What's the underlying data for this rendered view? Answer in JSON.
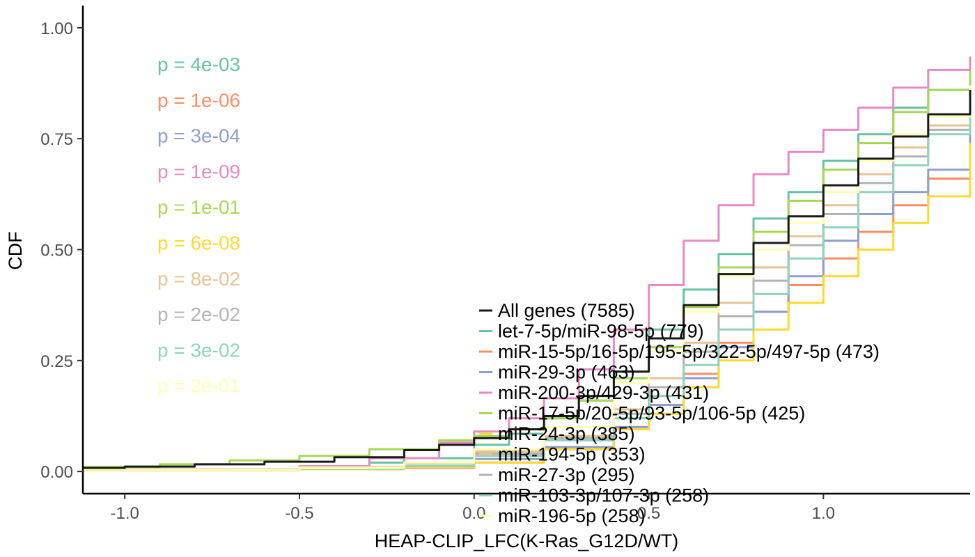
{
  "chart_data": {
    "type": "line",
    "xlabel": "HEAP-CLIP_LFC(K-Ras_G12D/WT)",
    "ylabel": "CDF",
    "xlim": [
      -1.12,
      1.42
    ],
    "ylim": [
      -0.05,
      1.05
    ],
    "x_ticks": [
      {
        "value": -1.0,
        "label": "-1.0"
      },
      {
        "value": -0.5,
        "label": "-0.5"
      },
      {
        "value": 0.0,
        "label": "0.0"
      },
      {
        "value": 0.5,
        "label": "0.5"
      },
      {
        "value": 1.0,
        "label": "1.0"
      }
    ],
    "y_ticks": [
      {
        "value": 0.0,
        "label": "0.00"
      },
      {
        "value": 0.25,
        "label": "0.25"
      },
      {
        "value": 0.5,
        "label": "0.50"
      },
      {
        "value": 0.75,
        "label": "0.75"
      },
      {
        "value": 1.0,
        "label": "1.00"
      }
    ],
    "grid": false,
    "legend_position": "bottom-right",
    "series": [
      {
        "name": "All genes (7585)",
        "color": "#1a1a1a",
        "pvalue": "",
        "points": [
          [
            -1.12,
            0.008
          ],
          [
            -1.0,
            0.011
          ],
          [
            -0.8,
            0.016
          ],
          [
            -0.6,
            0.022
          ],
          [
            -0.4,
            0.032
          ],
          [
            -0.2,
            0.048
          ],
          [
            -0.1,
            0.06
          ],
          [
            0.0,
            0.075
          ],
          [
            0.1,
            0.095
          ],
          [
            0.2,
            0.125
          ],
          [
            0.3,
            0.17
          ],
          [
            0.4,
            0.225
          ],
          [
            0.5,
            0.3
          ],
          [
            0.6,
            0.375
          ],
          [
            0.7,
            0.445
          ],
          [
            0.8,
            0.515
          ],
          [
            0.9,
            0.575
          ],
          [
            1.0,
            0.645
          ],
          [
            1.1,
            0.705
          ],
          [
            1.2,
            0.755
          ],
          [
            1.3,
            0.805
          ],
          [
            1.42,
            0.86
          ]
        ]
      },
      {
        "name": "let-7-5p/miR-98-5p (779)",
        "color": "#66c2a5",
        "pvalue": "p = 4e-03",
        "points": [
          [
            -1.12,
            0.005
          ],
          [
            -0.5,
            0.01
          ],
          [
            -0.3,
            0.02
          ],
          [
            -0.2,
            0.03
          ],
          [
            0.0,
            0.06
          ],
          [
            0.1,
            0.085
          ],
          [
            0.2,
            0.12
          ],
          [
            0.3,
            0.16
          ],
          [
            0.4,
            0.225
          ],
          [
            0.5,
            0.32
          ],
          [
            0.6,
            0.41
          ],
          [
            0.7,
            0.49
          ],
          [
            0.8,
            0.57
          ],
          [
            0.9,
            0.63
          ],
          [
            1.0,
            0.7
          ],
          [
            1.1,
            0.76
          ],
          [
            1.2,
            0.82
          ],
          [
            1.3,
            0.86
          ],
          [
            1.42,
            0.905
          ]
        ]
      },
      {
        "name": "miR-15-5p/16-5p/195-5p/322-5p/497-5p (473)",
        "color": "#fc8d62",
        "pvalue": "p = 1e-06",
        "points": [
          [
            -1.12,
            0.003
          ],
          [
            -0.5,
            0.005
          ],
          [
            -0.2,
            0.008
          ],
          [
            0.0,
            0.02
          ],
          [
            0.2,
            0.05
          ],
          [
            0.4,
            0.1
          ],
          [
            0.5,
            0.15
          ],
          [
            0.6,
            0.22
          ],
          [
            0.7,
            0.29
          ],
          [
            0.8,
            0.36
          ],
          [
            0.9,
            0.42
          ],
          [
            1.0,
            0.48
          ],
          [
            1.1,
            0.54
          ],
          [
            1.2,
            0.6
          ],
          [
            1.3,
            0.66
          ],
          [
            1.42,
            0.76
          ]
        ]
      },
      {
        "name": "miR-29-3p (463)",
        "color": "#8da0cb",
        "pvalue": "p = 3e-04",
        "points": [
          [
            -1.12,
            0.004
          ],
          [
            -0.5,
            0.007
          ],
          [
            -0.2,
            0.012
          ],
          [
            0.0,
            0.028
          ],
          [
            0.2,
            0.055
          ],
          [
            0.4,
            0.1
          ],
          [
            0.5,
            0.15
          ],
          [
            0.6,
            0.21
          ],
          [
            0.7,
            0.28
          ],
          [
            0.8,
            0.36
          ],
          [
            0.9,
            0.44
          ],
          [
            1.0,
            0.52
          ],
          [
            1.1,
            0.58
          ],
          [
            1.2,
            0.63
          ],
          [
            1.3,
            0.68
          ],
          [
            1.42,
            0.77
          ]
        ]
      },
      {
        "name": "miR-200-3p/429-3p (431)",
        "color": "#e78ac3",
        "pvalue": "p = 1e-09",
        "points": [
          [
            -1.12,
            0.005
          ],
          [
            -0.5,
            0.012
          ],
          [
            -0.3,
            0.03
          ],
          [
            -0.1,
            0.065
          ],
          [
            0.0,
            0.09
          ],
          [
            0.1,
            0.12
          ],
          [
            0.2,
            0.165
          ],
          [
            0.3,
            0.23
          ],
          [
            0.4,
            0.32
          ],
          [
            0.5,
            0.42
          ],
          [
            0.6,
            0.52
          ],
          [
            0.7,
            0.6
          ],
          [
            0.8,
            0.67
          ],
          [
            0.9,
            0.72
          ],
          [
            1.0,
            0.77
          ],
          [
            1.1,
            0.82
          ],
          [
            1.2,
            0.865
          ],
          [
            1.3,
            0.905
          ],
          [
            1.42,
            0.935
          ]
        ]
      },
      {
        "name": "miR-17-5p/20-5p/93-5p/106-5p (425)",
        "color": "#a6d854",
        "pvalue": "p = 1e-01",
        "points": [
          [
            -1.12,
            0.01
          ],
          [
            -0.9,
            0.016
          ],
          [
            -0.7,
            0.025
          ],
          [
            -0.5,
            0.035
          ],
          [
            -0.3,
            0.05
          ],
          [
            -0.1,
            0.07
          ],
          [
            0.0,
            0.08
          ],
          [
            0.1,
            0.095
          ],
          [
            0.2,
            0.12
          ],
          [
            0.3,
            0.16
          ],
          [
            0.4,
            0.21
          ],
          [
            0.5,
            0.28
          ],
          [
            0.6,
            0.37
          ],
          [
            0.7,
            0.46
          ],
          [
            0.8,
            0.54
          ],
          [
            0.9,
            0.61
          ],
          [
            1.0,
            0.68
          ],
          [
            1.1,
            0.74
          ],
          [
            1.2,
            0.81
          ],
          [
            1.3,
            0.86
          ],
          [
            1.42,
            0.905
          ]
        ]
      },
      {
        "name": "miR-24-3p (385)",
        "color": "#ffd92f",
        "pvalue": "p = 6e-08",
        "points": [
          [
            -1.12,
            0.003
          ],
          [
            -0.5,
            0.005
          ],
          [
            -0.2,
            0.01
          ],
          [
            0.0,
            0.02
          ],
          [
            0.2,
            0.05
          ],
          [
            0.4,
            0.095
          ],
          [
            0.5,
            0.13
          ],
          [
            0.6,
            0.19
          ],
          [
            0.7,
            0.25
          ],
          [
            0.8,
            0.32
          ],
          [
            0.9,
            0.38
          ],
          [
            1.0,
            0.44
          ],
          [
            1.1,
            0.5
          ],
          [
            1.2,
            0.56
          ],
          [
            1.3,
            0.62
          ],
          [
            1.42,
            0.74
          ]
        ]
      },
      {
        "name": "miR-194-5p (353)",
        "color": "#e5c494",
        "pvalue": "p = 8e-02",
        "points": [
          [
            -1.12,
            0.004
          ],
          [
            -0.5,
            0.01
          ],
          [
            -0.2,
            0.02
          ],
          [
            0.0,
            0.045
          ],
          [
            0.2,
            0.08
          ],
          [
            0.4,
            0.14
          ],
          [
            0.5,
            0.21
          ],
          [
            0.6,
            0.29
          ],
          [
            0.7,
            0.38
          ],
          [
            0.8,
            0.46
          ],
          [
            0.9,
            0.53
          ],
          [
            1.0,
            0.6
          ],
          [
            1.1,
            0.67
          ],
          [
            1.2,
            0.73
          ],
          [
            1.3,
            0.78
          ],
          [
            1.42,
            0.84
          ]
        ]
      },
      {
        "name": "miR-27-3p (295)",
        "color": "#b3b3b3",
        "pvalue": "p = 2e-02",
        "points": [
          [
            -1.12,
            0.004
          ],
          [
            -0.5,
            0.008
          ],
          [
            -0.2,
            0.018
          ],
          [
            0.0,
            0.04
          ],
          [
            0.2,
            0.075
          ],
          [
            0.4,
            0.13
          ],
          [
            0.5,
            0.19
          ],
          [
            0.6,
            0.27
          ],
          [
            0.7,
            0.35
          ],
          [
            0.8,
            0.43
          ],
          [
            0.9,
            0.51
          ],
          [
            1.0,
            0.58
          ],
          [
            1.1,
            0.65
          ],
          [
            1.2,
            0.71
          ],
          [
            1.3,
            0.77
          ],
          [
            1.42,
            0.84
          ]
        ]
      },
      {
        "name": "miR-103-3p/107-3p (258)",
        "color": "#8fd3c0",
        "pvalue": "p = 3e-02",
        "points": [
          [
            -1.12,
            0.004
          ],
          [
            -0.5,
            0.006
          ],
          [
            -0.2,
            0.012
          ],
          [
            0.0,
            0.035
          ],
          [
            0.2,
            0.07
          ],
          [
            0.4,
            0.12
          ],
          [
            0.5,
            0.17
          ],
          [
            0.6,
            0.24
          ],
          [
            0.7,
            0.32
          ],
          [
            0.8,
            0.4
          ],
          [
            0.9,
            0.48
          ],
          [
            1.0,
            0.55
          ],
          [
            1.1,
            0.63
          ],
          [
            1.2,
            0.69
          ],
          [
            1.3,
            0.76
          ],
          [
            1.42,
            0.83
          ]
        ]
      },
      {
        "name": "miR-196-5p (258)",
        "color": "#ffffb3",
        "pvalue": "p = 2e-01",
        "points": [
          [
            -1.12,
            0.004
          ],
          [
            -0.5,
            0.008
          ],
          [
            -0.2,
            0.02
          ],
          [
            0.0,
            0.05
          ],
          [
            0.2,
            0.1
          ],
          [
            0.4,
            0.2
          ],
          [
            0.5,
            0.27
          ],
          [
            0.6,
            0.36
          ],
          [
            0.7,
            0.44
          ],
          [
            0.8,
            0.5
          ],
          [
            0.9,
            0.56
          ],
          [
            1.0,
            0.63
          ],
          [
            1.1,
            0.7
          ],
          [
            1.2,
            0.76
          ],
          [
            1.3,
            0.8
          ],
          [
            1.42,
            0.87
          ]
        ]
      }
    ]
  }
}
